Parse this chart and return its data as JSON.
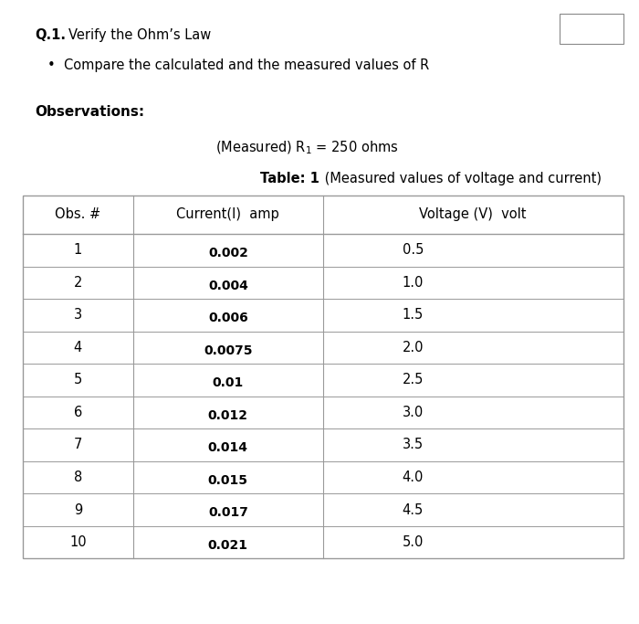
{
  "title_q": "Q.1.",
  "title_text": "  Verify the Ohm’s Law",
  "bullet_text": "Compare the calculated and the measured values of R",
  "observations_label": "Observations:",
  "table_title_bold": "Table: 1",
  "table_title_normal": " (Measured values of voltage and current)",
  "col_headers": [
    "Obs. #",
    "Current(I)  amp",
    "Voltage (V)  volt"
  ],
  "obs_numbers": [
    1,
    2,
    3,
    4,
    5,
    6,
    7,
    8,
    9,
    10
  ],
  "current_values": [
    "0.002",
    "0.004",
    "0.006",
    "0.0075",
    "0.01",
    "0.012",
    "0.014",
    "0.015",
    "0.017",
    "0.021"
  ],
  "voltage_values": [
    "0.5",
    "1.0",
    "1.5",
    "2.0",
    "2.5",
    "3.0",
    "3.5",
    "4.0",
    "4.5",
    "5.0"
  ],
  "bg_color": "#ffffff",
  "text_color": "#000000",
  "table_line_color": "#999999",
  "fig_width": 7.0,
  "fig_height": 6.83,
  "col_props": [
    0.185,
    0.315,
    0.5
  ]
}
